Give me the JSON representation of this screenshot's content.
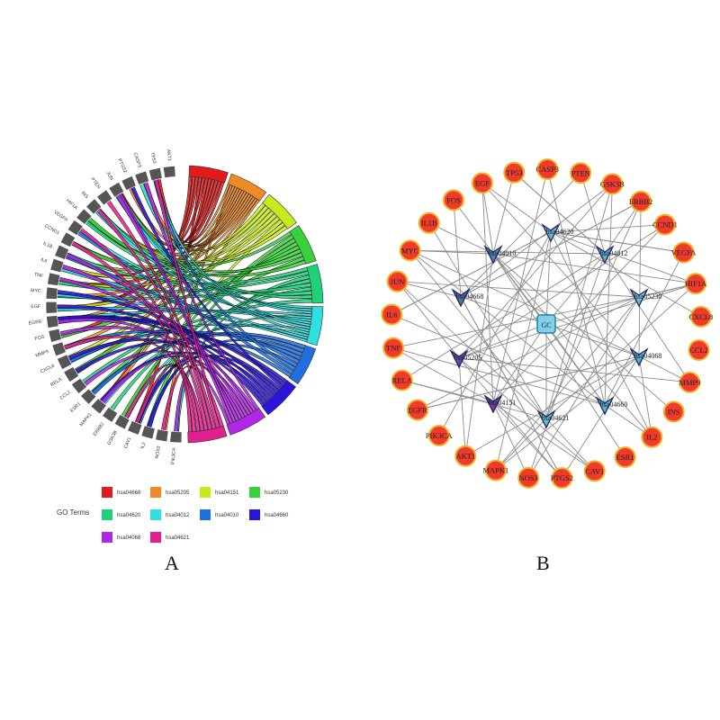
{
  "panel_a": {
    "label": "A",
    "genes": [
      "AKT1",
      "TP53",
      "CASP3",
      "PTGS2",
      "JUN",
      "PTEN",
      "INS",
      "HIF1A",
      "VEGFA",
      "CCND1",
      "IL1B",
      "IL6",
      "TNF",
      "MYC",
      "EGF",
      "EGFR",
      "FOS",
      "MMP9",
      "CXCL8",
      "RELA",
      "CCL2",
      "ESR1",
      "MAPK1",
      "ERBB2",
      "GSK3B",
      "CAV1",
      "IL2",
      "NOS3",
      "PIK3CA"
    ],
    "legend": {
      "title": "GO Terms",
      "items": [
        {
          "label": "hsa04668",
          "color": "#e31a1c"
        },
        {
          "label": "hsa05205",
          "color": "#f08a24"
        },
        {
          "label": "hsa04151",
          "color": "#c7ea1e"
        },
        {
          "label": "hsa05230",
          "color": "#38d13c"
        },
        {
          "label": "hsa04620",
          "color": "#1fd17a"
        },
        {
          "label": "hsa04012",
          "color": "#2fe0e0"
        },
        {
          "label": "hsa04010",
          "color": "#1f6fe0"
        },
        {
          "label": "hsa04660",
          "color": "#2a14d8"
        },
        {
          "label": "hsa04068",
          "color": "#b226e8"
        },
        {
          "label": "hsa04621",
          "color": "#e0208c"
        }
      ]
    }
  },
  "panel_b": {
    "label": "B",
    "center": "GC",
    "outer_nodes": [
      "TP53",
      "CASP3",
      "PTEN",
      "GSK3B",
      "ERBB2",
      "CCND1",
      "VEGFA",
      "HIF1A",
      "CXCL8",
      "CCL2",
      "MMP9",
      "INS",
      "IL2",
      "ESR1",
      "CAV1",
      "PTGS2",
      "NOS3",
      "MAPK1",
      "AKT1",
      "PIK3CA",
      "EGFR",
      "RELA",
      "TNF",
      "IL6",
      "JUN",
      "MYC",
      "IL1B",
      "FOS",
      "EGF"
    ],
    "pathways": [
      {
        "label": "hsa04620",
        "tone": "#5ab4d6"
      },
      {
        "label": "hsa04010",
        "tone": "#3b6fb0"
      },
      {
        "label": "hsa04012",
        "tone": "#3fa4c8"
      },
      {
        "label": "hsa05230",
        "tone": "#5cc0d8"
      },
      {
        "label": "hsa04068",
        "tone": "#3aa8c8"
      },
      {
        "label": "hsa04660",
        "tone": "#3aa8c8"
      },
      {
        "label": "hsa04621",
        "tone": "#4cb8d0"
      },
      {
        "label": "hsa04151",
        "tone": "#5a1f8e"
      },
      {
        "label": "hsa05205",
        "tone": "#5a2f9e"
      },
      {
        "label": "hsa04668",
        "tone": "#2f5f9e"
      }
    ],
    "pathway_display": [
      "hsa04620",
      "hsa04010",
      "hsa04012",
      "hsa05230",
      "hsa04068",
      "hsa04660",
      "hsa04621",
      "hsa04151",
      "hsa05205",
      "hsa04668"
    ]
  }
}
